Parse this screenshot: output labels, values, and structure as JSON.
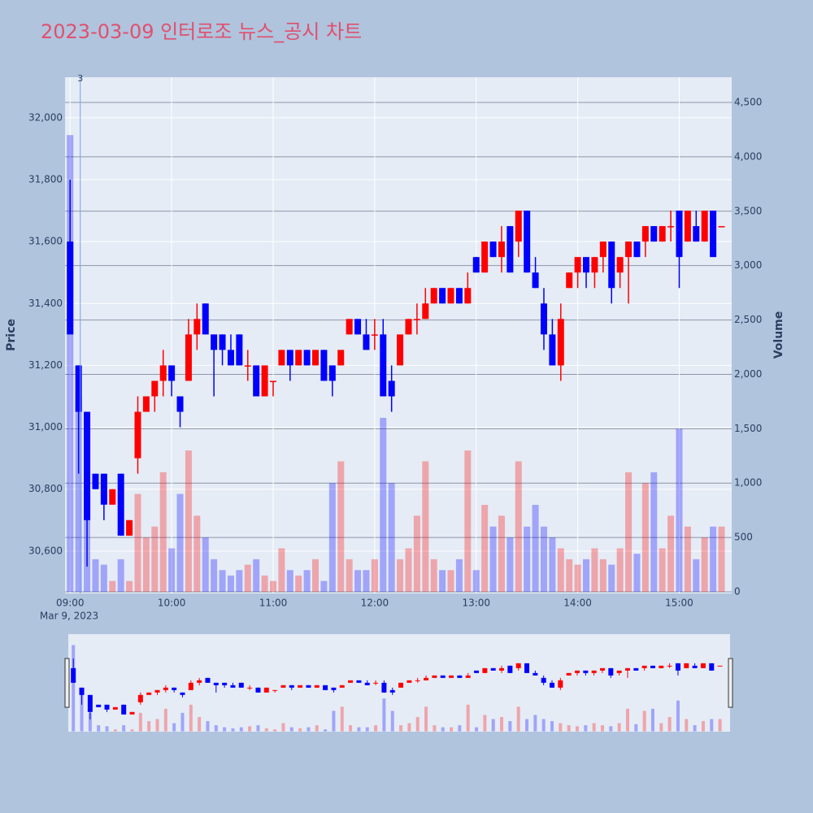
{
  "chart_data": {
    "type": "candlestick",
    "title": "2023-03-09 인터로조 뉴스_공시 차트",
    "y_label": "Price",
    "y2_label": "Volume",
    "x_date_label": "Mar 9, 2023",
    "increasing_color": "#ff0000",
    "decreasing_color": "#0000ff",
    "annotation": {
      "x": "2023-03-09 09:06",
      "text": "3"
    },
    "x": [
      "2023-03-09 09:00",
      "2023-03-09 09:05",
      "2023-03-09 09:10",
      "2023-03-09 09:15",
      "2023-03-09 09:20",
      "2023-03-09 09:25",
      "2023-03-09 09:30",
      "2023-03-09 09:35",
      "2023-03-09 09:40",
      "2023-03-09 09:45",
      "2023-03-09 09:50",
      "2023-03-09 09:55",
      "2023-03-09 10:00",
      "2023-03-09 10:05",
      "2023-03-09 10:10",
      "2023-03-09 10:15",
      "2023-03-09 10:20",
      "2023-03-09 10:25",
      "2023-03-09 10:30",
      "2023-03-09 10:35",
      "2023-03-09 10:40",
      "2023-03-09 10:45",
      "2023-03-09 10:50",
      "2023-03-09 10:55",
      "2023-03-09 11:00",
      "2023-03-09 11:05",
      "2023-03-09 11:10",
      "2023-03-09 11:15",
      "2023-03-09 11:20",
      "2023-03-09 11:25",
      "2023-03-09 11:30",
      "2023-03-09 11:35",
      "2023-03-09 11:40",
      "2023-03-09 11:45",
      "2023-03-09 11:50",
      "2023-03-09 11:55",
      "2023-03-09 12:00",
      "2023-03-09 12:05",
      "2023-03-09 12:10",
      "2023-03-09 12:15",
      "2023-03-09 12:20",
      "2023-03-09 12:25",
      "2023-03-09 12:30",
      "2023-03-09 12:35",
      "2023-03-09 12:40",
      "2023-03-09 12:45",
      "2023-03-09 12:50",
      "2023-03-09 12:55",
      "2023-03-09 13:00",
      "2023-03-09 13:05",
      "2023-03-09 13:10",
      "2023-03-09 13:15",
      "2023-03-09 13:20",
      "2023-03-09 13:25",
      "2023-03-09 13:30",
      "2023-03-09 13:35",
      "2023-03-09 13:40",
      "2023-03-09 13:45",
      "2023-03-09 13:50",
      "2023-03-09 13:55",
      "2023-03-09 14:00",
      "2023-03-09 14:05",
      "2023-03-09 14:10",
      "2023-03-09 14:15",
      "2023-03-09 14:20",
      "2023-03-09 14:25",
      "2023-03-09 14:30",
      "2023-03-09 14:35",
      "2023-03-09 14:40",
      "2023-03-09 14:45",
      "2023-03-09 14:50",
      "2023-03-09 14:55",
      "2023-03-09 15:00",
      "2023-03-09 15:05",
      "2023-03-09 15:10",
      "2023-03-09 15:15",
      "2023-03-09 15:20",
      "2023-03-09 15:25"
    ],
    "open": [
      31600,
      31200,
      31050,
      30850,
      30850,
      30750,
      30850,
      30650,
      30900,
      31050,
      31100,
      31150,
      31200,
      31100,
      31150,
      31300,
      31400,
      31300,
      31300,
      31250,
      31300,
      31200,
      31200,
      31100,
      31150,
      31200,
      31250,
      31200,
      31250,
      31200,
      31250,
      31200,
      31200,
      31300,
      31350,
      31300,
      31300,
      31300,
      31150,
      31200,
      31300,
      31350,
      31350,
      31400,
      31450,
      31400,
      31450,
      31400,
      31550,
      31500,
      31600,
      31550,
      31650,
      31600,
      31700,
      31500,
      31400,
      31300,
      31200,
      31450,
      31500,
      31550,
      31500,
      31550,
      31600,
      31500,
      31550,
      31600,
      31600,
      31650,
      31600,
      31650,
      31700,
      31600,
      31650,
      31600,
      31700,
      31650
    ],
    "high": [
      31800,
      31200,
      31050,
      30850,
      30850,
      30800,
      30850,
      30700,
      31100,
      31100,
      31150,
      31250,
      31200,
      31100,
      31350,
      31400,
      31400,
      31300,
      31300,
      31300,
      31300,
      31250,
      31200,
      31200,
      31150,
      31250,
      31250,
      31250,
      31250,
      31250,
      31250,
      31200,
      31250,
      31350,
      31350,
      31350,
      31350,
      31350,
      31200,
      31300,
      31350,
      31400,
      31450,
      31450,
      31450,
      31450,
      31450,
      31500,
      31550,
      31600,
      31600,
      31650,
      31650,
      31700,
      31700,
      31550,
      31450,
      31350,
      31400,
      31500,
      31550,
      31550,
      31550,
      31600,
      31600,
      31550,
      31600,
      31600,
      31650,
      31650,
      31650,
      31700,
      31700,
      31700,
      31700,
      31700,
      31700,
      31650
    ],
    "low": [
      31300,
      30850,
      30550,
      30800,
      30700,
      30750,
      30650,
      30650,
      30850,
      31050,
      31050,
      31100,
      31100,
      31000,
      31150,
      31250,
      31300,
      31100,
      31200,
      31200,
      31200,
      31150,
      31100,
      31100,
      31100,
      31200,
      31150,
      31200,
      31200,
      31200,
      31150,
      31100,
      31200,
      31300,
      31300,
      31250,
      31250,
      31100,
      31050,
      31200,
      31300,
      31300,
      31350,
      31400,
      31400,
      31400,
      31400,
      31400,
      31500,
      31500,
      31550,
      31500,
      31500,
      31550,
      31500,
      31450,
      31250,
      31200,
      31150,
      31450,
      31450,
      31450,
      31450,
      31500,
      31400,
      31450,
      31400,
      31550,
      31550,
      31600,
      31600,
      31600,
      31450,
      31600,
      31600,
      31600,
      31550,
      31650
    ],
    "close": [
      31300,
      31050,
      30700,
      30800,
      30750,
      30800,
      30650,
      30700,
      31050,
      31100,
      31150,
      31200,
      31150,
      31050,
      31300,
      31350,
      31300,
      31250,
      31250,
      31200,
      31200,
      31200,
      31100,
      31200,
      31150,
      31250,
      31200,
      31250,
      31200,
      31250,
      31150,
      31150,
      31250,
      31350,
      31300,
      31250,
      31300,
      31100,
      31100,
      31300,
      31350,
      31350,
      31400,
      31450,
      31400,
      31450,
      31400,
      31450,
      31500,
      31600,
      31550,
      31600,
      31500,
      31700,
      31500,
      31450,
      31300,
      31200,
      31350,
      31500,
      31550,
      31500,
      31550,
      31600,
      31450,
      31550,
      31600,
      31550,
      31650,
      31600,
      31650,
      31650,
      31550,
      31700,
      31600,
      31700,
      31550,
      31650
    ],
    "volume": [
      4200,
      1800,
      900,
      300,
      250,
      100,
      300,
      100,
      900,
      500,
      600,
      1100,
      400,
      900,
      1300,
      700,
      500,
      300,
      200,
      150,
      200,
      250,
      300,
      150,
      100,
      400,
      200,
      150,
      200,
      300,
      100,
      1000,
      1200,
      300,
      200,
      200,
      300,
      1600,
      1000,
      300,
      400,
      700,
      1200,
      300,
      200,
      200,
      300,
      1300,
      200,
      800,
      600,
      700,
      500,
      1200,
      600,
      800,
      600,
      500,
      400,
      300,
      250,
      300,
      400,
      300,
      250,
      400,
      1100,
      350,
      1000,
      1100,
      400,
      700,
      1500,
      600,
      300,
      500,
      600,
      600
    ],
    "ylim": [
      30463,
      32131
    ],
    "y2lim": [
      -15,
      4732
    ],
    "xlim": [
      "2023-03-09 08:57",
      "2023-03-09 15:31"
    ],
    "yticks": [
      {
        "value": 30600,
        "label": "30,600"
      },
      {
        "value": 30800,
        "label": "30,800"
      },
      {
        "value": 31000,
        "label": "31,000"
      },
      {
        "value": 31200,
        "label": "31,200"
      },
      {
        "value": 31400,
        "label": "31,400"
      },
      {
        "value": 31600,
        "label": "31,600"
      },
      {
        "value": 31800,
        "label": "31,800"
      },
      {
        "value": 32000,
        "label": "32,000"
      }
    ],
    "y2ticks": [
      0,
      500,
      {
        "value": 1000,
        "label": "1,000"
      },
      {
        "value": 1500,
        "label": "1,500"
      },
      {
        "value": 2000,
        "label": "2,000"
      },
      {
        "value": 2500,
        "label": "2,500"
      },
      {
        "value": 3000,
        "label": "3,000"
      },
      {
        "value": 3500,
        "label": "3,500"
      },
      {
        "value": 4000,
        "label": "4,000"
      },
      {
        "value": 4500,
        "label": "4,500"
      }
    ],
    "xticks": [
      {
        "value": "2023-03-09 09:00",
        "label": "09:00"
      },
      {
        "value": "2023-03-09 10:00",
        "label": "10:00"
      },
      {
        "value": "2023-03-09 11:00",
        "label": "11:00"
      },
      {
        "value": "2023-03-09 12:00",
        "label": "12:00"
      },
      {
        "value": "2023-03-09 13:00",
        "label": "13:00"
      },
      {
        "value": "2023-03-09 14:00",
        "label": "14:00"
      },
      {
        "value": "2023-03-09 15:00",
        "label": "15:00"
      }
    ],
    "grid": true
  }
}
